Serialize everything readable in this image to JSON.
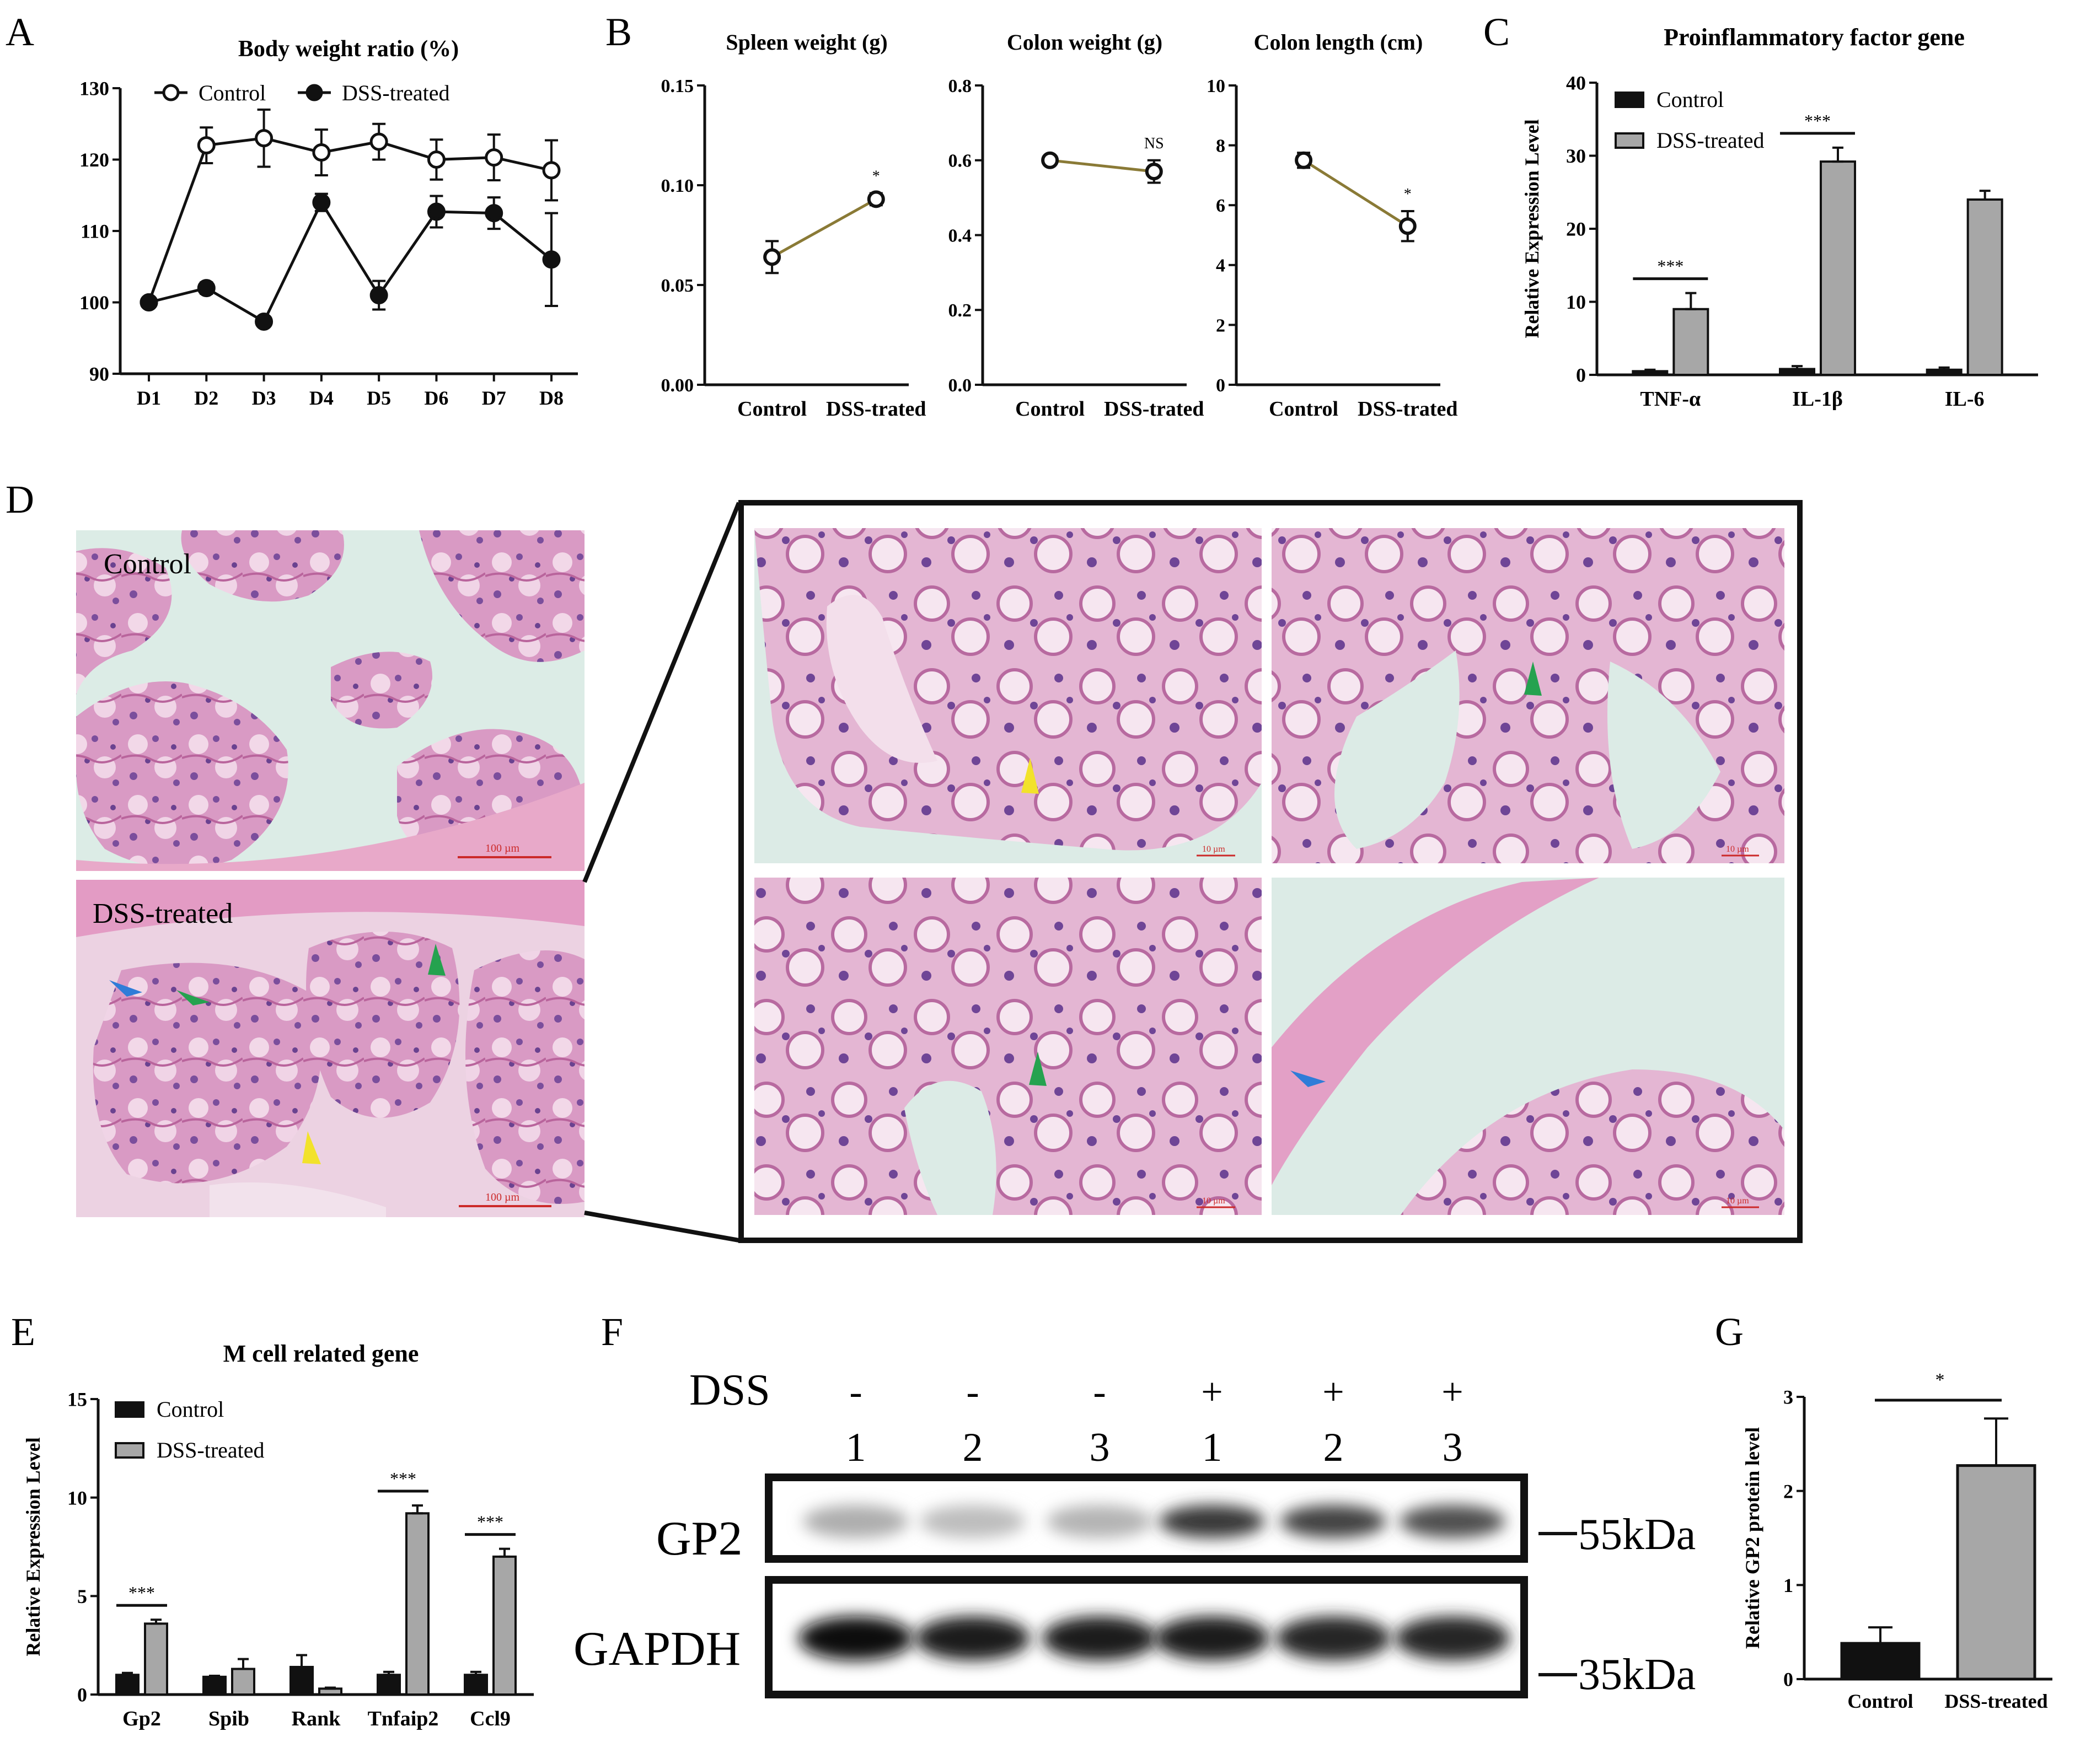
{
  "colors": {
    "black": "#111111",
    "gray_bar": "#a7a7a7",
    "line_b": "#8a7a36",
    "arrow_yellow": "#f2e22b",
    "arrow_green": "#25a24f",
    "arrow_blue": "#2f7cd8",
    "tissue_pink": "#d67fb0",
    "tissue_purple": "#7a4f9a",
    "lumen": "#dfeee9"
  },
  "panel_labels": {
    "A": "A",
    "B": "B",
    "C": "C",
    "D": "D",
    "E": "E",
    "F": "F",
    "G": "G"
  },
  "chart_data": [
    {
      "id": "A",
      "type": "line",
      "title": "Body weight ratio (%)",
      "categories": [
        "D1",
        "D2",
        "D3",
        "D4",
        "D5",
        "D6",
        "D7",
        "D8"
      ],
      "ylim": [
        90,
        130
      ],
      "yticks": [
        "90",
        "100",
        "110",
        "120",
        "130"
      ],
      "legend_position": "top",
      "series": [
        {
          "name": "Control",
          "marker": "open-circle",
          "values": [
            100,
            122,
            123,
            121,
            122.5,
            120,
            120.3,
            118.5
          ],
          "errors": [
            0.5,
            2.5,
            4,
            3.2,
            2.5,
            2.8,
            3.2,
            4.2
          ]
        },
        {
          "name": "DSS-treated",
          "marker": "filled-circle",
          "values": [
            100,
            102,
            97.3,
            114,
            101,
            112.7,
            112.5,
            106
          ],
          "errors": [
            0.5,
            0.8,
            0.5,
            1.2,
            2,
            2.2,
            2.2,
            6.5
          ]
        }
      ]
    },
    {
      "id": "B1",
      "type": "line",
      "title": "Spleen weight (g)",
      "categories": [
        "Control",
        "DSS-trated"
      ],
      "values": [
        0.064,
        0.093
      ],
      "errors": [
        0.008,
        0.003
      ],
      "ylim": [
        0,
        0.15
      ],
      "yticks": [
        "0.00",
        "0.05",
        "0.10",
        "0.15"
      ],
      "annotation": "*"
    },
    {
      "id": "B2",
      "type": "line",
      "title": "Colon weight (g)",
      "categories": [
        "Control",
        "DSS-trated"
      ],
      "values": [
        0.6,
        0.57
      ],
      "errors": [
        0.01,
        0.03
      ],
      "ylim": [
        0,
        0.8
      ],
      "yticks": [
        "0.0",
        "0.2",
        "0.4",
        "0.6",
        "0.8"
      ],
      "annotation": "NS"
    },
    {
      "id": "B3",
      "type": "line",
      "title": "Colon length (cm)",
      "categories": [
        "Control",
        "DSS-trated"
      ],
      "values": [
        7.5,
        5.3
      ],
      "errors": [
        0.25,
        0.5
      ],
      "ylim": [
        0,
        10
      ],
      "yticks": [
        "0",
        "2",
        "4",
        "6",
        "8",
        "10"
      ],
      "annotation": "*"
    },
    {
      "id": "C",
      "type": "bar",
      "title": "Proinflammatory factor gene",
      "ylabel": "Relative Expression Level",
      "categories": [
        "TNF-α",
        "IL-1β",
        "IL-6"
      ],
      "ylim": [
        0,
        40
      ],
      "yticks": [
        "0",
        "10",
        "20",
        "30",
        "40"
      ],
      "legend_position": "top-left",
      "series": [
        {
          "name": "Control",
          "values": [
            0.5,
            0.8,
            0.7
          ],
          "errors": [
            0.2,
            0.4,
            0.3
          ]
        },
        {
          "name": "DSS-treated",
          "values": [
            9,
            29.2,
            24
          ],
          "errors": [
            2.2,
            1.9,
            1.2
          ]
        }
      ],
      "annotations": [
        "***",
        "***"
      ]
    },
    {
      "id": "E",
      "type": "bar",
      "title": "M cell related gene",
      "ylabel": "Relative Expression Level",
      "categories": [
        "Gp2",
        "Spib",
        "Rank",
        "Tnfaip2",
        "Ccl9"
      ],
      "ylim": [
        0,
        15
      ],
      "yticks": [
        "0",
        "5",
        "10",
        "15"
      ],
      "legend_position": "top-left",
      "series": [
        {
          "name": "Control",
          "values": [
            1,
            0.9,
            1.4,
            1,
            1
          ],
          "errors": [
            0.1,
            0.05,
            0.6,
            0.15,
            0.15
          ]
        },
        {
          "name": "DSS-treated",
          "values": [
            3.6,
            1.3,
            0.3,
            9.2,
            7
          ],
          "errors": [
            0.2,
            0.5,
            0.05,
            0.4,
            0.4
          ]
        }
      ],
      "annotations": [
        "***",
        "***",
        "***"
      ]
    },
    {
      "id": "G",
      "type": "bar",
      "ylabel": "Relative GP2 protein level",
      "categories": [
        "Control",
        "DSS-treated"
      ],
      "values": [
        0.38,
        2.27
      ],
      "errors": [
        0.17,
        0.5
      ],
      "ylim": [
        0,
        3
      ],
      "yticks": [
        "0",
        "1",
        "2",
        "3"
      ],
      "annotation": "*"
    }
  ],
  "panel_d": {
    "control_label": "Control",
    "dss_label": "DSS-treated",
    "scale_100": "100 µm",
    "scale_10": "10 µm"
  },
  "panel_f": {
    "dss_label": "DSS",
    "signs": [
      "-",
      "-",
      "-",
      "+",
      "+",
      "+"
    ],
    "lanes": [
      "1",
      "2",
      "3",
      "1",
      "2",
      "3"
    ],
    "gp2_label": "GP2",
    "gapdh_label": "GAPDH",
    "marker_55": "55kDa",
    "marker_35": "35kDa",
    "gp2_intensity": [
      0.35,
      0.28,
      0.32,
      0.85,
      0.8,
      0.75
    ],
    "gapdh_intensity": [
      1,
      0.95,
      0.95,
      0.95,
      0.9,
      0.9
    ]
  }
}
